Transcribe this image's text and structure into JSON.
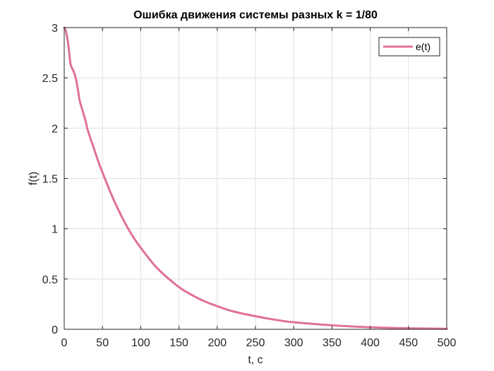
{
  "chart_data": {
    "type": "line",
    "title": "Ошибка движения системы разных k = 1/80",
    "xlabel": "t, c",
    "ylabel": "f(t)",
    "xlim": [
      0,
      500
    ],
    "ylim": [
      0,
      3
    ],
    "xticks": [
      0,
      50,
      100,
      150,
      200,
      250,
      300,
      350,
      400,
      450,
      500
    ],
    "xtick_labels": [
      "0",
      "50",
      "100",
      "150",
      "200",
      "250",
      "300",
      "350",
      "400",
      "450",
      "500"
    ],
    "yticks": [
      0,
      0.5,
      1,
      1.5,
      2,
      2.5,
      3
    ],
    "ytick_labels": [
      "0",
      "0.5",
      "1",
      "1.5",
      "2",
      "2.5",
      "3"
    ],
    "grid": true,
    "legend": {
      "position": "top-right"
    },
    "series": [
      {
        "name": "e(t)",
        "color": "#e07099",
        "x": [
          0,
          2,
          5,
          8,
          10,
          12,
          15,
          18,
          20,
          23,
          25,
          28,
          30,
          33,
          35,
          38,
          40,
          45,
          50,
          60,
          70,
          80,
          90,
          100,
          120,
          140,
          150,
          160,
          180,
          200,
          220,
          250,
          280,
          300,
          350,
          400,
          450,
          500
        ],
        "y": [
          3.0,
          2.97,
          2.85,
          2.65,
          2.6,
          2.57,
          2.5,
          2.38,
          2.28,
          2.2,
          2.15,
          2.07,
          2.0,
          1.93,
          1.88,
          1.82,
          1.77,
          1.66,
          1.56,
          1.37,
          1.2,
          1.05,
          0.92,
          0.81,
          0.62,
          0.48,
          0.42,
          0.37,
          0.29,
          0.23,
          0.18,
          0.13,
          0.09,
          0.07,
          0.04,
          0.02,
          0.01,
          0.005
        ]
      }
    ]
  }
}
